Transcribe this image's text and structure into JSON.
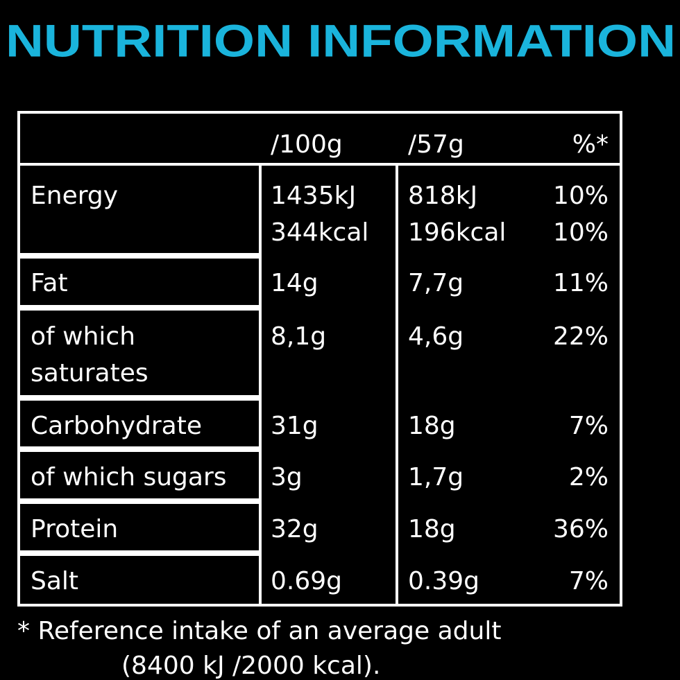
{
  "title": "NUTRITION INFORMATION",
  "table": {
    "header": [
      "/100g",
      "/57g",
      "%*"
    ],
    "rows": [
      [
        [
          "Energy"
        ],
        [
          "1435kJ",
          "344kcal"
        ],
        [
          "818kJ",
          "196kcal"
        ],
        [
          "10%",
          "10%"
        ]
      ],
      [
        [
          "Fat"
        ],
        [
          "14g"
        ],
        [
          "7,7g"
        ],
        [
          "11%"
        ]
      ],
      [
        [
          "of which",
          "saturates"
        ],
        [
          "8,1g"
        ],
        [
          "4,6g"
        ],
        [
          "22%"
        ]
      ],
      [
        [
          "Carbohydrate"
        ],
        [
          "31g"
        ],
        [
          "18g"
        ],
        [
          "7%"
        ]
      ],
      [
        [
          "of which sugars"
        ],
        [
          "3g"
        ],
        [
          "1,7g"
        ],
        [
          "2%"
        ]
      ],
      [
        [
          "Protein"
        ],
        [
          "32g"
        ],
        [
          "18g"
        ],
        [
          "36%"
        ]
      ],
      [
        [
          "Salt"
        ],
        [
          "0.69g"
        ],
        [
          "0.39g"
        ],
        [
          "7%"
        ]
      ]
    ]
  },
  "footnote": [
    "* Reference intake of an average adult",
    "(8400 kJ /2000 kcal)."
  ]
}
